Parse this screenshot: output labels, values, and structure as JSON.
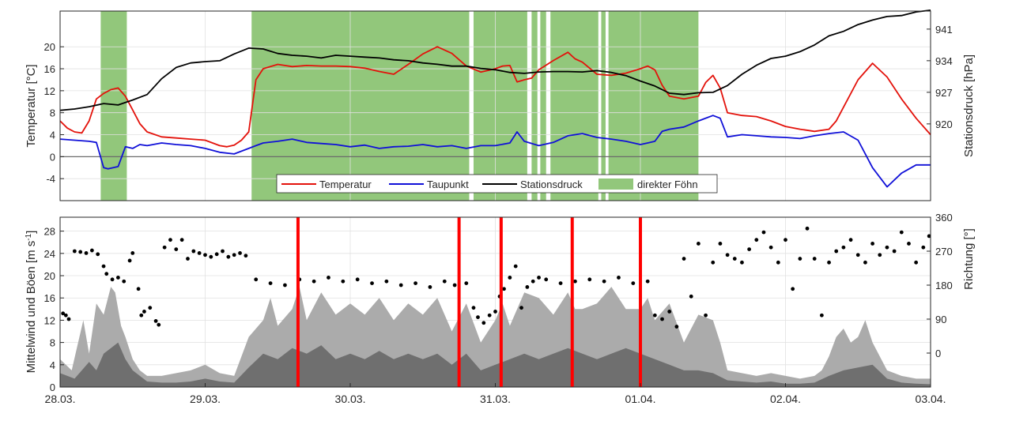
{
  "colors": {
    "temperature": "#e3120b",
    "dewpoint": "#1010d8",
    "pressure": "#000000",
    "foehn": "#92c77b",
    "gust": "#ababab",
    "mean_wind": "#6f6f6f",
    "marker": "#ff0000",
    "direction": "#000000"
  },
  "chart_data": [
    {
      "type": "line",
      "ylabel": "Temperatur [°C]",
      "y2label": "Stationsdruck [hPa]",
      "xlim": [
        0,
        6
      ],
      "ylim": [
        -8,
        26.5
      ],
      "y2lim": [
        903,
        945
      ],
      "yticks": [
        -4,
        0,
        4,
        8,
        12,
        16,
        20
      ],
      "y2ticks": [
        920,
        927,
        934,
        941
      ],
      "grid": true,
      "legend_position": "bottom",
      "legend": [
        "Temperatur",
        "Taupunkt",
        "Stationsdruck",
        "direkter Föhn"
      ],
      "foehn_periods": [
        [
          0.28,
          0.46
        ],
        [
          1.32,
          2.82
        ],
        [
          2.85,
          3.22
        ],
        [
          3.25,
          3.29
        ],
        [
          3.31,
          3.35
        ],
        [
          3.38,
          3.71
        ],
        [
          3.73,
          3.76
        ],
        [
          3.78,
          4.4
        ]
      ],
      "series": [
        {
          "name": "Temperatur",
          "x": [
            0,
            0.05,
            0.1,
            0.15,
            0.2,
            0.25,
            0.3,
            0.35,
            0.4,
            0.45,
            0.5,
            0.55,
            0.6,
            0.7,
            0.8,
            0.9,
            1.0,
            1.1,
            1.15,
            1.2,
            1.25,
            1.3,
            1.35,
            1.4,
            1.5,
            1.6,
            1.7,
            1.8,
            1.9,
            2.0,
            2.1,
            2.2,
            2.3,
            2.4,
            2.5,
            2.6,
            2.7,
            2.8,
            2.9,
            3.0,
            3.05,
            3.1,
            3.15,
            3.2,
            3.25,
            3.3,
            3.4,
            3.5,
            3.55,
            3.6,
            3.7,
            3.8,
            3.9,
            4.0,
            4.05,
            4.1,
            4.15,
            4.2,
            4.3,
            4.4,
            4.45,
            4.5,
            4.55,
            4.6,
            4.7,
            4.8,
            4.9,
            5.0,
            5.1,
            5.2,
            5.3,
            5.35,
            5.4,
            5.5,
            5.6,
            5.7,
            5.8,
            5.9,
            6.0
          ],
          "y": [
            6.5,
            5.2,
            4.5,
            4.3,
            6.5,
            10.5,
            11.5,
            12.2,
            12.5,
            11,
            8.5,
            6,
            4.5,
            3.6,
            3.4,
            3.2,
            3.0,
            2.0,
            1.8,
            2.1,
            3.0,
            4.5,
            14,
            16,
            16.8,
            16.4,
            16.6,
            16.5,
            16.5,
            16.4,
            16.1,
            15.5,
            15.0,
            16.8,
            18.7,
            20.0,
            18.8,
            16.5,
            15.4,
            16.0,
            16.5,
            16.6,
            13.6,
            14.0,
            14.3,
            15.8,
            17.5,
            19.0,
            17.8,
            17.2,
            15.0,
            14.8,
            15.2,
            16.0,
            16.5,
            15.8,
            13.0,
            11.0,
            10.5,
            11.0,
            13.5,
            14.8,
            12.5,
            8.0,
            7.5,
            7.3,
            6.5,
            5.5,
            5.0,
            4.6,
            5.0,
            6.5,
            9.0,
            14.0,
            17.0,
            14.5,
            10.5,
            7.0,
            4.0
          ]
        },
        {
          "name": "Taupunkt",
          "x": [
            0,
            0.1,
            0.2,
            0.25,
            0.3,
            0.33,
            0.4,
            0.45,
            0.5,
            0.55,
            0.6,
            0.7,
            0.8,
            0.9,
            1.0,
            1.1,
            1.2,
            1.3,
            1.35,
            1.4,
            1.5,
            1.6,
            1.7,
            1.8,
            1.9,
            2.0,
            2.1,
            2.2,
            2.3,
            2.4,
            2.5,
            2.6,
            2.7,
            2.8,
            2.9,
            3.0,
            3.1,
            3.15,
            3.2,
            3.3,
            3.4,
            3.5,
            3.6,
            3.7,
            3.8,
            3.9,
            4.0,
            4.05,
            4.1,
            4.15,
            4.2,
            4.3,
            4.4,
            4.5,
            4.55,
            4.6,
            4.7,
            4.8,
            4.9,
            5.0,
            5.1,
            5.2,
            5.3,
            5.4,
            5.5,
            5.6,
            5.7,
            5.8,
            5.9,
            6.0
          ],
          "y": [
            3.2,
            3.0,
            2.8,
            2.6,
            -2.0,
            -2.2,
            -1.8,
            1.8,
            1.5,
            2.2,
            2.0,
            2.5,
            2.2,
            2.0,
            1.5,
            0.8,
            0.5,
            1.5,
            2.0,
            2.5,
            2.8,
            3.2,
            2.6,
            2.4,
            2.2,
            1.8,
            2.1,
            1.5,
            1.8,
            1.9,
            2.2,
            1.8,
            2.0,
            1.5,
            2.0,
            2.0,
            2.5,
            4.5,
            2.8,
            2.0,
            2.6,
            3.8,
            4.2,
            3.5,
            3.2,
            2.8,
            2.2,
            2.5,
            2.8,
            4.6,
            5.0,
            5.4,
            6.5,
            7.5,
            7.0,
            3.6,
            4.0,
            3.8,
            3.6,
            3.5,
            3.3,
            3.8,
            4.2,
            4.5,
            3.0,
            -2.0,
            -5.5,
            -3.0,
            -1.5,
            -1.5
          ]
        },
        {
          "name": "Stationsdruck",
          "axis": "right",
          "x": [
            0,
            0.1,
            0.2,
            0.3,
            0.4,
            0.5,
            0.6,
            0.7,
            0.8,
            0.9,
            1.0,
            1.1,
            1.2,
            1.3,
            1.4,
            1.5,
            1.6,
            1.7,
            1.8,
            1.9,
            2.0,
            2.1,
            2.2,
            2.3,
            2.4,
            2.5,
            2.6,
            2.7,
            2.8,
            2.9,
            3.0,
            3.1,
            3.2,
            3.3,
            3.4,
            3.5,
            3.6,
            3.7,
            3.8,
            3.9,
            4.0,
            4.1,
            4.2,
            4.3,
            4.4,
            4.5,
            4.6,
            4.7,
            4.8,
            4.9,
            5.0,
            5.1,
            5.2,
            5.3,
            5.4,
            5.5,
            5.6,
            5.7,
            5.8,
            5.9,
            6.0
          ],
          "y": [
            923,
            923.3,
            923.8,
            924.5,
            924.2,
            925.3,
            926.5,
            930.0,
            932.5,
            933.5,
            933.8,
            934.0,
            935.5,
            936.8,
            936.6,
            935.6,
            935.2,
            935.0,
            934.6,
            935.2,
            935.0,
            934.8,
            934.6,
            934.2,
            934.0,
            933.5,
            933.2,
            932.8,
            932.8,
            932.3,
            932.0,
            931.4,
            931.2,
            931.5,
            931.6,
            931.6,
            931.5,
            931.8,
            931.4,
            930.7,
            929.5,
            928.4,
            926.8,
            926.5,
            926.9,
            927.0,
            928.5,
            931.0,
            933.0,
            934.5,
            935.0,
            936.0,
            937.5,
            939.5,
            940.5,
            942.0,
            943.0,
            943.8,
            944.0,
            944.8,
            945.2
          ]
        }
      ]
    },
    {
      "type": "area",
      "ylabel": "Mittelwind und Böen [m s-1]",
      "ylabel_main": "Mittelwind und Böen [m s",
      "ylabel_exp": "-1",
      "ylabel_end": "]",
      "y2label": "Richtung [°]",
      "xlim": [
        0,
        6
      ],
      "ylim": [
        0,
        30.5
      ],
      "yticks": [
        0,
        4,
        8,
        12,
        16,
        20,
        24,
        28
      ],
      "y2lim": [
        -90,
        360
      ],
      "y2ticks": [
        0,
        90,
        180,
        270,
        360
      ],
      "grid": true,
      "xticks": [
        0,
        1,
        2,
        3,
        4,
        5,
        6
      ],
      "xtick_labels": [
        "28.03.",
        "29.03.",
        "30.03.",
        "31.03.",
        "01.04.",
        "02.04.",
        "03.04."
      ],
      "event_markers": [
        1.64,
        2.75,
        3.04,
        3.53,
        4.0
      ],
      "series": [
        {
          "name": "Böen",
          "x": [
            0,
            0.08,
            0.12,
            0.16,
            0.2,
            0.25,
            0.3,
            0.35,
            0.38,
            0.42,
            0.45,
            0.5,
            0.55,
            0.6,
            0.7,
            0.8,
            0.9,
            1.0,
            1.1,
            1.2,
            1.3,
            1.4,
            1.45,
            1.5,
            1.6,
            1.65,
            1.7,
            1.8,
            1.9,
            2.0,
            2.1,
            2.2,
            2.3,
            2.4,
            2.5,
            2.6,
            2.7,
            2.8,
            2.9,
            3.0,
            3.05,
            3.1,
            3.2,
            3.3,
            3.4,
            3.5,
            3.55,
            3.6,
            3.7,
            3.8,
            3.9,
            4.0,
            4.05,
            4.1,
            4.2,
            4.3,
            4.4,
            4.5,
            4.55,
            4.6,
            4.7,
            4.8,
            4.9,
            5.0,
            5.1,
            5.2,
            5.25,
            5.3,
            5.35,
            5.4,
            5.45,
            5.5,
            5.55,
            5.6,
            5.7,
            5.8,
            5.9,
            6.0
          ],
          "y": [
            5,
            3,
            7.5,
            12,
            6,
            15,
            13,
            18,
            17,
            11,
            9,
            5,
            3,
            2,
            2,
            2.5,
            3,
            4,
            2.5,
            2,
            9,
            12,
            16,
            11,
            14,
            18,
            12,
            17,
            13,
            15,
            13,
            16,
            12,
            15,
            13,
            16,
            10,
            15,
            8,
            12,
            15,
            11,
            17,
            16,
            13,
            17,
            14,
            14,
            15,
            18,
            14,
            14,
            16,
            12,
            15,
            8,
            13,
            12,
            8,
            3,
            2.5,
            2,
            2.5,
            2,
            1.5,
            2,
            3,
            5.5,
            9,
            10.5,
            8,
            9,
            12,
            8,
            3,
            2,
            1.5,
            1.5
          ]
        },
        {
          "name": "Mittelwind",
          "x": [
            0,
            0.1,
            0.15,
            0.2,
            0.25,
            0.3,
            0.35,
            0.4,
            0.45,
            0.5,
            0.6,
            0.7,
            0.8,
            0.9,
            1.0,
            1.1,
            1.2,
            1.3,
            1.4,
            1.5,
            1.6,
            1.7,
            1.8,
            1.9,
            2.0,
            2.1,
            2.2,
            2.3,
            2.4,
            2.5,
            2.6,
            2.7,
            2.8,
            2.9,
            3.0,
            3.1,
            3.2,
            3.3,
            3.4,
            3.5,
            3.6,
            3.7,
            3.8,
            3.9,
            4.0,
            4.1,
            4.2,
            4.3,
            4.4,
            4.5,
            4.6,
            4.7,
            4.8,
            4.9,
            5.0,
            5.1,
            5.2,
            5.3,
            5.4,
            5.5,
            5.6,
            5.7,
            5.8,
            5.9,
            6.0
          ],
          "y": [
            2.5,
            1.5,
            3,
            4.5,
            3,
            6,
            7,
            8,
            5,
            3,
            1,
            0.8,
            0.8,
            1,
            1.5,
            1,
            0.8,
            3.5,
            6,
            5,
            7,
            6,
            7.5,
            5,
            6,
            5,
            6.5,
            5,
            6,
            5,
            6,
            4,
            6,
            3,
            4,
            5,
            6,
            5,
            6,
            7,
            6,
            5,
            6,
            7,
            6,
            5,
            4,
            3,
            3,
            2.5,
            1.2,
            1,
            0.8,
            1,
            0.6,
            0.6,
            0.8,
            2,
            3,
            3.5,
            4,
            1.5,
            0.8,
            0.6,
            0.5
          ]
        },
        {
          "name": "Richtung",
          "axis": "right",
          "type": "scatter",
          "x": [
            0.02,
            0.04,
            0.06,
            0.1,
            0.14,
            0.18,
            0.22,
            0.26,
            0.3,
            0.32,
            0.36,
            0.4,
            0.44,
            0.48,
            0.5,
            0.54,
            0.56,
            0.58,
            0.62,
            0.66,
            0.68,
            0.72,
            0.76,
            0.8,
            0.84,
            0.88,
            0.92,
            0.96,
            1.0,
            1.04,
            1.08,
            1.12,
            1.16,
            1.2,
            1.24,
            1.28,
            1.35,
            1.45,
            1.55,
            1.65,
            1.75,
            1.85,
            1.95,
            2.05,
            2.15,
            2.25,
            2.35,
            2.45,
            2.55,
            2.65,
            2.72,
            2.8,
            2.85,
            2.88,
            2.92,
            2.96,
            3.0,
            3.03,
            3.06,
            3.1,
            3.14,
            3.18,
            3.22,
            3.26,
            3.3,
            3.35,
            3.45,
            3.55,
            3.65,
            3.75,
            3.85,
            3.95,
            4.05,
            4.1,
            4.15,
            4.2,
            4.25,
            4.3,
            4.35,
            4.4,
            4.45,
            4.5,
            4.55,
            4.6,
            4.65,
            4.7,
            4.75,
            4.8,
            4.85,
            4.9,
            4.95,
            5.0,
            5.05,
            5.1,
            5.15,
            5.2,
            5.25,
            5.3,
            5.35,
            5.4,
            5.45,
            5.5,
            5.55,
            5.6,
            5.65,
            5.7,
            5.75,
            5.8,
            5.85,
            5.9,
            5.95,
            5.99
          ],
          "y": [
            105,
            100,
            90,
            270,
            268,
            265,
            272,
            262,
            230,
            210,
            195,
            200,
            190,
            245,
            265,
            170,
            100,
            110,
            120,
            85,
            75,
            280,
            300,
            275,
            300,
            250,
            270,
            265,
            260,
            255,
            262,
            270,
            255,
            260,
            265,
            258,
            195,
            185,
            180,
            195,
            190,
            200,
            190,
            195,
            185,
            190,
            180,
            185,
            175,
            190,
            180,
            185,
            120,
            95,
            80,
            100,
            110,
            150,
            170,
            200,
            230,
            120,
            175,
            190,
            200,
            195,
            185,
            190,
            195,
            190,
            200,
            185,
            190,
            100,
            90,
            110,
            70,
            250,
            150,
            290,
            100,
            240,
            290,
            260,
            250,
            240,
            275,
            300,
            320,
            280,
            240,
            300,
            170,
            250,
            330,
            250,
            100,
            240,
            270,
            280,
            300,
            260,
            240,
            290,
            260,
            280,
            270,
            320,
            290,
            240,
            280,
            310
          ]
        }
      ]
    }
  ]
}
